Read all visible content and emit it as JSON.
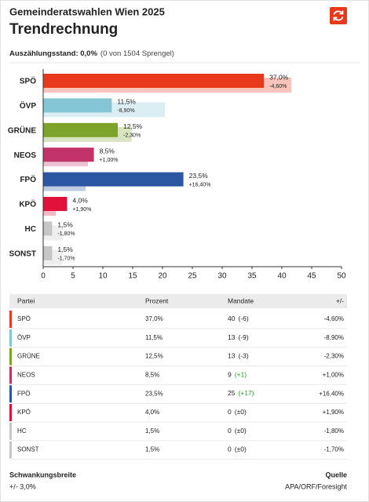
{
  "header": {
    "title": "Gemeinderatswahlen Wien 2025",
    "subtitle": "Trendrechnung",
    "status_label": "Auszählungsstand: 0,0%",
    "status_detail": "(0 von 1504 Sprengel)"
  },
  "chart_data": {
    "type": "bar",
    "orientation": "horizontal",
    "categories": [
      "SPÖ",
      "ÖVP",
      "GRÜNE",
      "NEOS",
      "FPÖ",
      "KPÖ",
      "HC",
      "SONST"
    ],
    "values": [
      37.0,
      11.5,
      12.5,
      8.5,
      23.5,
      4.0,
      1.5,
      1.5
    ],
    "value_labels": [
      "37,0%",
      "11,5%",
      "12,5%",
      "8,5%",
      "23,5%",
      "4,0%",
      "1,5%",
      "1,5%"
    ],
    "previous_values": [
      41.6,
      20.4,
      14.8,
      7.5,
      7.1,
      2.1,
      3.3,
      3.2
    ],
    "changes": [
      -4.6,
      -8.9,
      -2.3,
      1.0,
      16.4,
      1.9,
      -1.8,
      -1.7
    ],
    "change_labels": [
      "-4,60%",
      "-8,90%",
      "-2,30%",
      "+1,00%",
      "+16,40%",
      "+1,90%",
      "-1,80%",
      "-1,70%"
    ],
    "colors": [
      "#e8391d",
      "#84c6d6",
      "#7ea32b",
      "#c2336a",
      "#2b57a2",
      "#e0123c",
      "#c6c6c6",
      "#c6c6c6"
    ],
    "xlim": [
      0,
      50
    ],
    "xticks": [
      0,
      5,
      10,
      15,
      20,
      25,
      30,
      35,
      40,
      45,
      50
    ]
  },
  "table": {
    "columns": [
      "Partei",
      "Prozent",
      "Mandate",
      "+/-"
    ],
    "seats": [
      40,
      13,
      13,
      9,
      25,
      0,
      0,
      0
    ],
    "seat_changes": [
      "(-6)",
      "(-9)",
      "(-3)",
      "(+1)",
      "(+17)",
      "(±0)",
      "(±0)",
      "(±0)"
    ]
  },
  "footer": {
    "margin_label": "Schwankungsbreite",
    "margin_value": "+/- 3,0%",
    "source_label": "Quelle",
    "source_value": "APA/ORF/Foresight"
  }
}
